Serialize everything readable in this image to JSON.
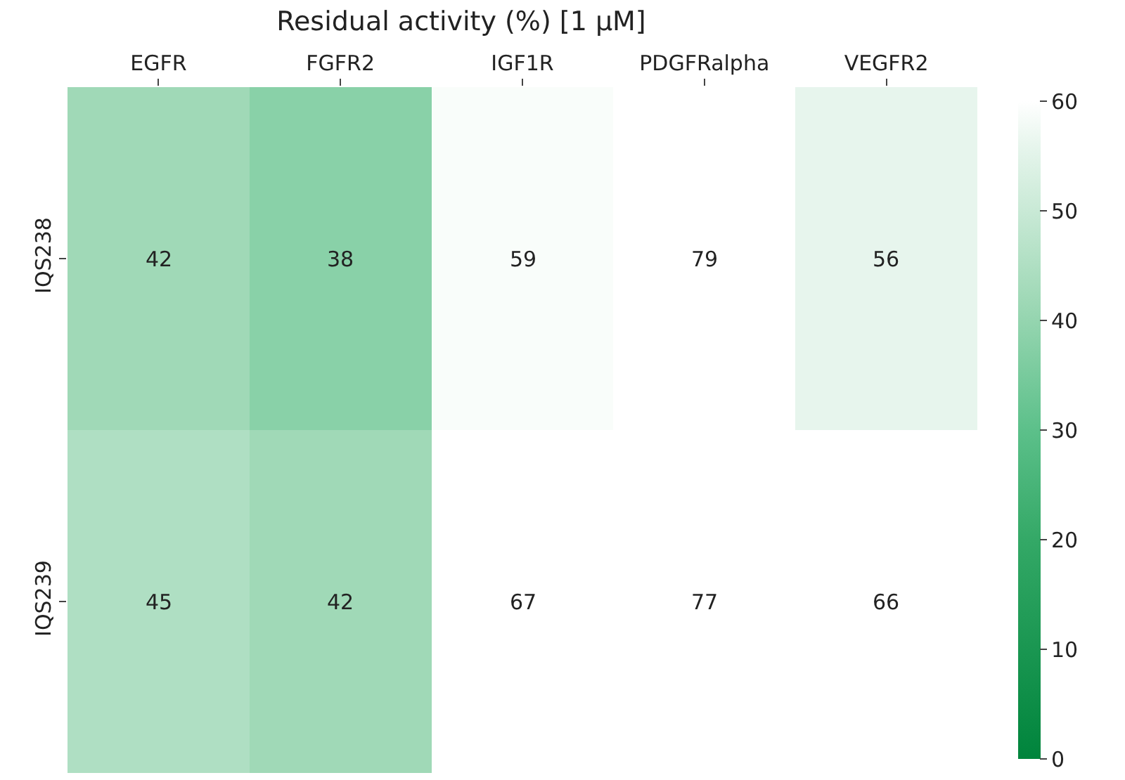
{
  "chart_data": {
    "type": "heatmap",
    "title": "Residual activity (%) [1 μM]",
    "categories": [
      "EGFR",
      "FGFR2",
      "IGF1R",
      "PDGFRalpha",
      "VEGFR2"
    ],
    "y_categories": [
      "IQS238",
      "IQS239"
    ],
    "cells": [
      [
        42,
        38,
        59,
        79,
        56
      ],
      [
        45,
        42,
        67,
        77,
        66
      ]
    ],
    "data_labels": true,
    "clim": [
      0,
      60
    ],
    "cticks": [
      0,
      10,
      20,
      30,
      40,
      50,
      60
    ]
  }
}
